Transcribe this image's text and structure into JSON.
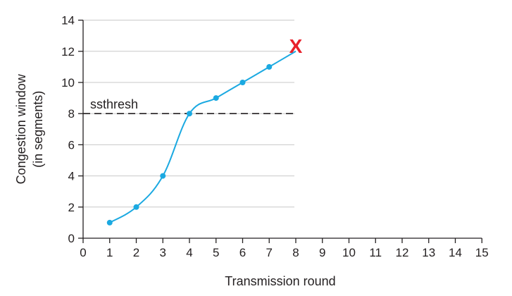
{
  "chart_data": {
    "type": "line",
    "xlabel": "Transmission round",
    "ylabel_lines": [
      "Congestion window",
      "(in segments)"
    ],
    "xlim": [
      0,
      15
    ],
    "ylim": [
      0,
      14
    ],
    "x_ticks": [
      0,
      1,
      2,
      3,
      4,
      5,
      6,
      7,
      8,
      9,
      10,
      11,
      12,
      13,
      14,
      15
    ],
    "y_ticks": [
      0,
      2,
      4,
      6,
      8,
      10,
      12,
      14
    ],
    "grid": "horizontal",
    "series": [
      {
        "x": [
          1,
          2,
          3,
          4,
          5,
          6,
          7,
          8
        ],
        "y": [
          1,
          2,
          4,
          8,
          9,
          10,
          11,
          12
        ],
        "markers": [
          true,
          true,
          true,
          true,
          true,
          true,
          true,
          false
        ]
      }
    ],
    "threshold": {
      "label": "ssthresh",
      "y": 8
    },
    "loss_marker": {
      "label": "X",
      "x": 8,
      "y": 12
    },
    "colors": {
      "line": "#1ba9e1",
      "threshold": "#231f20",
      "axis": "#231f20",
      "grid": "#c8c8c8",
      "loss_marker": "#e8202a"
    }
  }
}
